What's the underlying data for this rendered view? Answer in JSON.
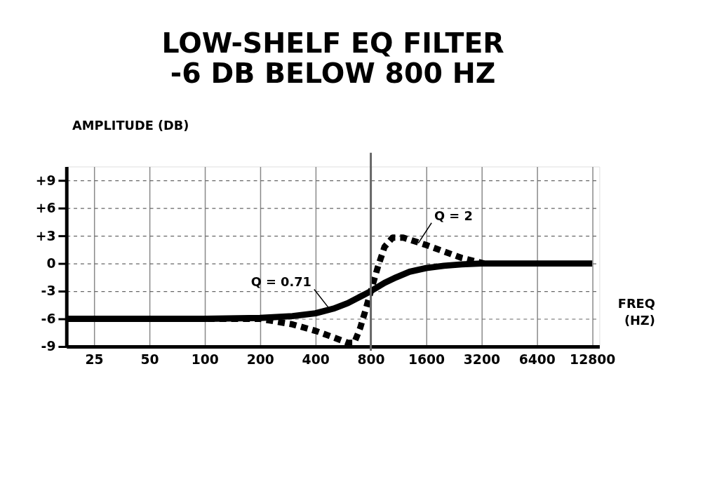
{
  "chart_data": {
    "type": "line",
    "title": "LOW-SHELF EQ FILTER",
    "subtitle": "-6 DB BELOW 800 HZ",
    "xlabel": "FREQ (HZ)",
    "ylabel": "AMPLITUDE (DB)",
    "log": "x",
    "xlim": [
      17.7,
      14000
    ],
    "xticks": [
      25,
      50,
      100,
      200,
      400,
      800,
      1600,
      3200,
      6400,
      12800
    ],
    "ylim": [
      -9,
      10.5
    ],
    "yticks": [
      {
        "value": 9,
        "label": "+9"
      },
      {
        "value": 6,
        "label": "+6"
      },
      {
        "value": 3,
        "label": "+3"
      },
      0,
      -3,
      -6,
      -9
    ],
    "grid": true,
    "series": [
      {
        "color": "#000000",
        "line_style": "dashed",
        "x": [
          17.7,
          200,
          300,
          400,
          500,
          600,
          650,
          700,
          750,
          800,
          870,
          950,
          1050,
          1200,
          1600,
          2000,
          2500,
          3300
        ],
        "values": [
          -6,
          -6,
          -6.6,
          -7.3,
          -8.0,
          -8.6,
          -8.6,
          -7,
          -5,
          -3,
          -0.5,
          1.8,
          2.8,
          2.8,
          2.0,
          1.3,
          0.6,
          0
        ]
      },
      {
        "color": "#000000",
        "line_style": "solid",
        "x": [
          17.7,
          100,
          200,
          300,
          400,
          500,
          600,
          700,
          800,
          950,
          1100,
          1300,
          1600,
          2000,
          2500,
          3200,
          12800
        ],
        "values": [
          -6,
          -6,
          -5.9,
          -5.7,
          -5.4,
          -4.9,
          -4.3,
          -3.6,
          -3,
          -2.1,
          -1.5,
          -0.9,
          -0.5,
          -0.25,
          -0.1,
          0,
          0
        ]
      }
    ],
    "ref_lines": [
      {
        "axis": "x",
        "value": 800,
        "color": "#666666"
      }
    ],
    "annotations": [
      {
        "text": "Q = 0.71",
        "x": 480,
        "y": -5
      },
      {
        "text": "Q = 2",
        "x": 1450,
        "y": 2.2
      }
    ]
  }
}
